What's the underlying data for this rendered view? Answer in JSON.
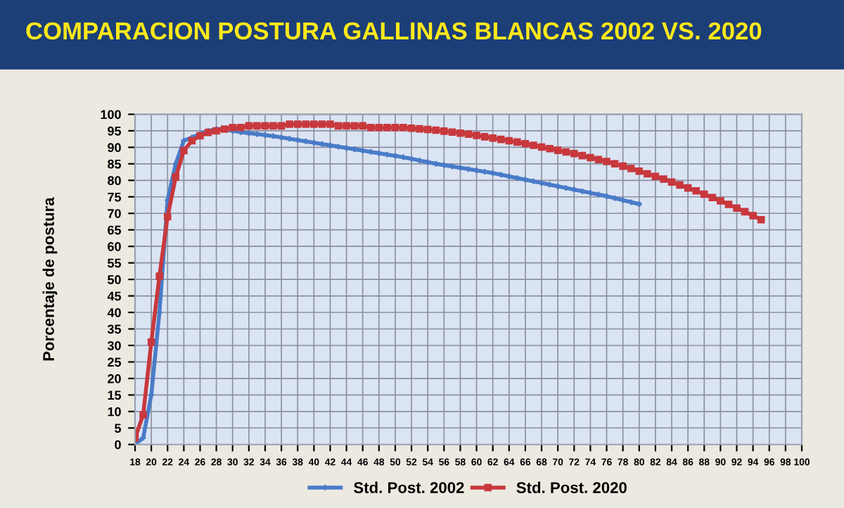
{
  "chart_data": {
    "type": "line",
    "title": "COMPARACION POSTURA GALLINAS BLANCAS 2002 VS. 2020",
    "ylabel": "Porcentaje de postura",
    "xlim": [
      18,
      100
    ],
    "xticks": [
      18,
      20,
      22,
      24,
      26,
      28,
      30,
      32,
      34,
      36,
      38,
      40,
      42,
      44,
      46,
      48,
      50,
      52,
      54,
      56,
      58,
      60,
      62,
      64,
      66,
      68,
      70,
      72,
      74,
      76,
      78,
      80,
      82,
      84,
      86,
      88,
      90,
      92,
      94,
      96,
      98,
      100
    ],
    "ylim": [
      0,
      100
    ],
    "yticks": [
      0,
      5,
      10,
      15,
      20,
      25,
      30,
      35,
      40,
      45,
      50,
      55,
      60,
      65,
      70,
      75,
      80,
      85,
      90,
      95,
      100
    ],
    "grid": true,
    "legend": "bottom",
    "series": [
      {
        "name": "Std. Post. 2002",
        "color": "#4a7bc8",
        "marker": "cross",
        "x": [
          18,
          19,
          20,
          21,
          22,
          23,
          24,
          25,
          26,
          27,
          28,
          29,
          30,
          31,
          32,
          33,
          34,
          35,
          36,
          37,
          38,
          39,
          40,
          41,
          42,
          43,
          44,
          45,
          46,
          47,
          48,
          49,
          50,
          51,
          52,
          53,
          54,
          55,
          56,
          57,
          58,
          59,
          60,
          61,
          62,
          63,
          64,
          65,
          66,
          67,
          68,
          69,
          70,
          71,
          72,
          73,
          74,
          75,
          76,
          77,
          78,
          79,
          80
        ],
        "values": [
          0,
          2,
          15,
          40,
          74,
          85,
          92,
          93,
          94,
          95,
          95.5,
          95.5,
          95,
          94.6,
          94.3,
          94,
          93.7,
          93.4,
          93,
          92.6,
          92.2,
          91.8,
          91.4,
          91,
          90.6,
          90.2,
          89.8,
          89.4,
          89,
          88.6,
          88.2,
          87.8,
          87.4,
          87,
          86.5,
          86,
          85.5,
          85,
          84.6,
          84.2,
          83.8,
          83.4,
          83,
          82.6,
          82.2,
          81.7,
          81.2,
          80.7,
          80.2,
          79.7,
          79.2,
          78.7,
          78.2,
          77.7,
          77.2,
          76.7,
          76.2,
          75.7,
          75.2,
          74.6,
          74,
          73.4,
          72.8
        ]
      },
      {
        "name": "Std. Post. 2020",
        "color": "#c8383c",
        "marker": "square",
        "x": [
          18,
          19,
          20,
          21,
          22,
          23,
          24,
          25,
          26,
          27,
          28,
          29,
          30,
          31,
          32,
          33,
          34,
          35,
          36,
          37,
          38,
          39,
          40,
          41,
          42,
          43,
          44,
          45,
          46,
          47,
          48,
          49,
          50,
          51,
          52,
          53,
          54,
          55,
          56,
          57,
          58,
          59,
          60,
          61,
          62,
          63,
          64,
          65,
          66,
          67,
          68,
          69,
          70,
          71,
          72,
          73,
          74,
          75,
          76,
          77,
          78,
          79,
          80,
          81,
          82,
          83,
          84,
          85,
          86,
          87,
          88,
          89,
          90,
          91,
          92,
          93,
          94,
          95
        ],
        "values": [
          2,
          9,
          31,
          51,
          69,
          81,
          89,
          92,
          93.5,
          94.5,
          95,
          95.5,
          96,
          96,
          96.5,
          96.5,
          96.5,
          96.5,
          96.5,
          97,
          97,
          97,
          97,
          97,
          97,
          96.5,
          96.5,
          96.5,
          96.5,
          96,
          96,
          96,
          96,
          96,
          95.8,
          95.6,
          95.4,
          95.2,
          94.9,
          94.6,
          94.3,
          94,
          93.6,
          93.2,
          92.8,
          92.4,
          92,
          91.6,
          91.1,
          90.6,
          90.1,
          89.6,
          89.1,
          88.6,
          88.1,
          87.5,
          86.9,
          86.3,
          85.7,
          85,
          84.3,
          83.6,
          82.8,
          82,
          81.2,
          80.4,
          79.5,
          78.6,
          77.7,
          76.8,
          75.8,
          74.8,
          73.8,
          72.7,
          71.6,
          70.5,
          69.3,
          68.1
        ]
      }
    ]
  }
}
